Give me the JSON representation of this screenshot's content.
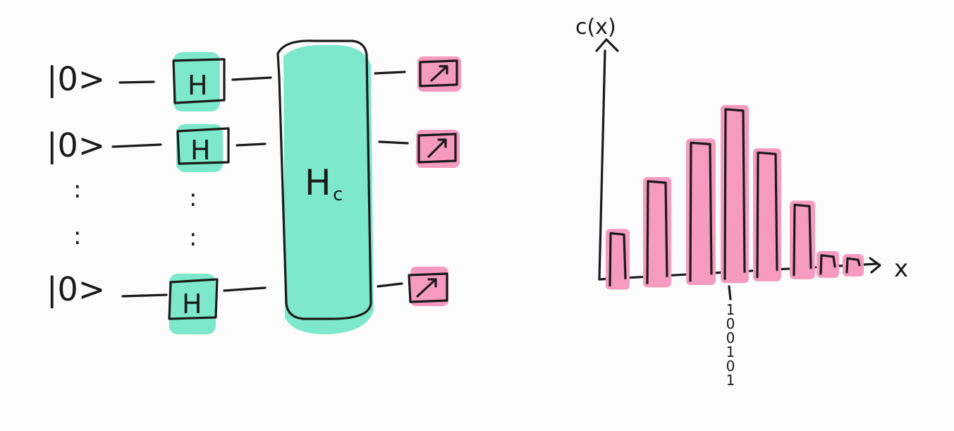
{
  "circuit": {
    "qubits": [
      {
        "ket": "|0>",
        "gate": "H"
      },
      {
        "ket": "|0>",
        "gate": "H"
      },
      {
        "ket": "|0>",
        "gate": "H"
      }
    ],
    "ellipsis": ":",
    "cost_block_label": "H",
    "cost_block_subscript": "c",
    "gate_color": "#7de8cc",
    "measure_color": "#f79ac0"
  },
  "chart_data": {
    "type": "bar",
    "ylabel": "c(x)",
    "xlabel": "x",
    "values": [
      0.2,
      0.42,
      0.58,
      0.72,
      0.52,
      0.28,
      0.05,
      0.03
    ],
    "highlight_tick_label": "100101",
    "bar_color": "#f79ac0"
  }
}
